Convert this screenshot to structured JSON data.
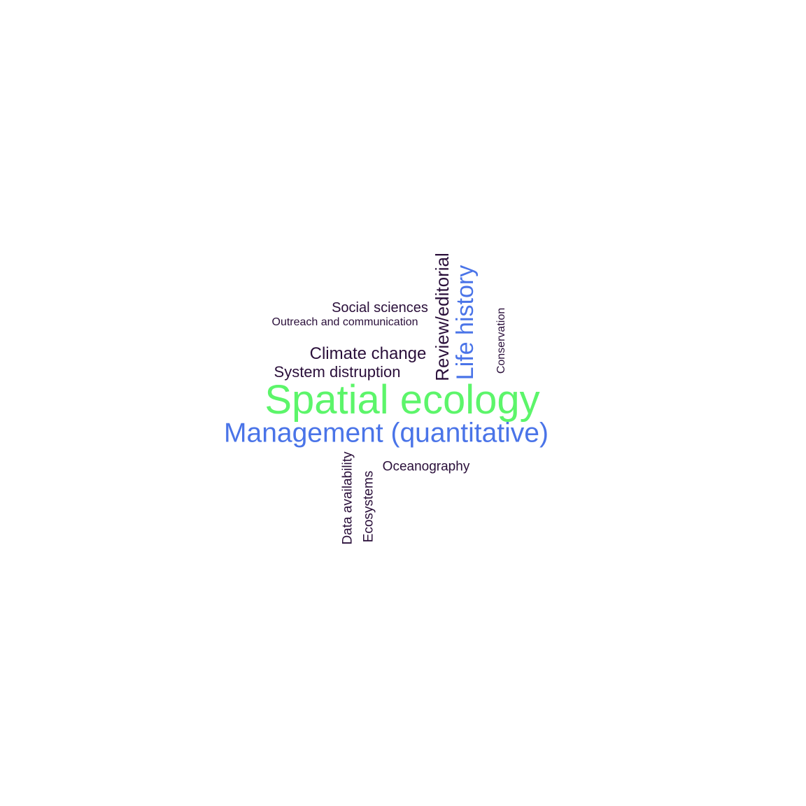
{
  "colors": {
    "background": "#ffffff",
    "dark": "#2a0f3a",
    "blue": "#4a74e8",
    "green": "#5cf56a"
  },
  "words": [
    {
      "text": "Spatial ecology",
      "color": "#5cf56a",
      "orientation": "horizontal"
    },
    {
      "text": "Management (quantitative)",
      "color": "#4a74e8",
      "orientation": "horizontal"
    },
    {
      "text": "Life history",
      "color": "#4a74e8",
      "orientation": "vertical"
    },
    {
      "text": "Review/editorial",
      "color": "#2a0f3a",
      "orientation": "vertical"
    },
    {
      "text": "Climate change",
      "color": "#2a0f3a",
      "orientation": "horizontal"
    },
    {
      "text": "System distruption",
      "color": "#2a0f3a",
      "orientation": "horizontal"
    },
    {
      "text": "Social sciences",
      "color": "#2a0f3a",
      "orientation": "horizontal"
    },
    {
      "text": "Outreach and communication",
      "color": "#2a0f3a",
      "orientation": "horizontal"
    },
    {
      "text": "Conservation",
      "color": "#2a0f3a",
      "orientation": "vertical"
    },
    {
      "text": "Oceanography",
      "color": "#2a0f3a",
      "orientation": "horizontal"
    },
    {
      "text": "Data availability",
      "color": "#2a0f3a",
      "orientation": "vertical"
    },
    {
      "text": "Ecosystems",
      "color": "#2a0f3a",
      "orientation": "vertical"
    }
  ]
}
